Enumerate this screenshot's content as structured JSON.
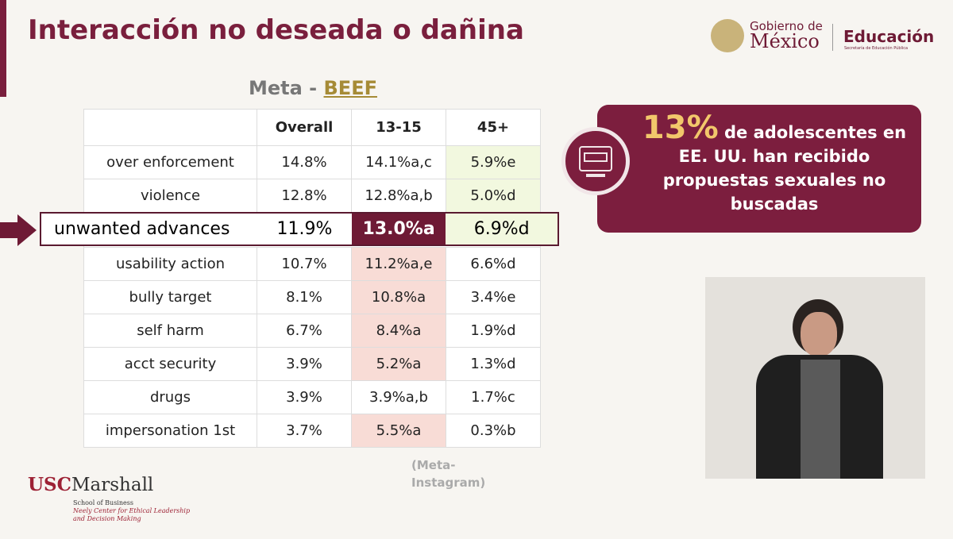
{
  "header": {
    "title": "Interacción no deseada o dañina",
    "logo_gobierno_top": "Gobierno de",
    "logo_gobierno_bottom": "México",
    "logo_educacion": "Educación",
    "logo_educacion_sub": "Secretaría de Educación Pública"
  },
  "table": {
    "caption_prefix": "Meta -",
    "caption_link": "BEEF",
    "columns": [
      "",
      "Overall",
      "13-15",
      "45+"
    ],
    "rows": [
      [
        "over enforcement",
        "14.8%",
        "14.1%a,c",
        "5.9%e"
      ],
      [
        "violence",
        "12.8%",
        "12.8%a,b",
        "5.0%d"
      ],
      [
        "unwanted advances",
        "11.9%",
        "13.0%a",
        "6.9%d"
      ],
      [
        "usability action",
        "10.7%",
        "11.2%a,e",
        "6.6%d"
      ],
      [
        "bully target",
        "8.1%",
        "10.8%a",
        "3.4%e"
      ],
      [
        "self harm",
        "6.7%",
        "8.4%a",
        "1.9%d"
      ],
      [
        "acct security",
        "3.9%",
        "5.2%a",
        "1.3%d"
      ],
      [
        "drugs",
        "3.9%",
        "3.9%a,b",
        "1.7%c"
      ],
      [
        "impersonation 1st",
        "3.7%",
        "5.5%a",
        "0.3%b"
      ]
    ],
    "source_line1": "(Meta-",
    "source_line2": "Instagram)"
  },
  "callout": {
    "highlight": "13%",
    "text": "de adolescentes en EE. UU. han recibido propuestas sexuales no buscadas"
  },
  "footer": {
    "logo_main_a": "USC",
    "logo_main_b": "Marshall",
    "logo_line1": "School of Business",
    "logo_line2": "Neely Center for Ethical Leadership",
    "logo_line3": "and Decision Making"
  }
}
